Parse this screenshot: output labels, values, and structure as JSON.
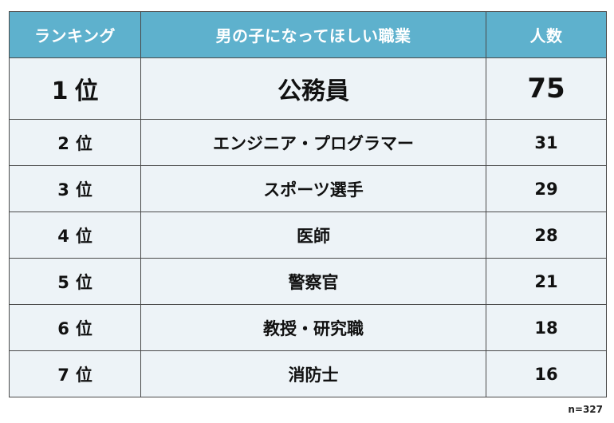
{
  "table": {
    "headers": {
      "rank": "ランキング",
      "job": "男の子になってほしい職業",
      "count": "人数"
    },
    "rows": [
      {
        "rank_num": "1",
        "rank_suffix": "位",
        "job": "公務員",
        "count": "75"
      },
      {
        "rank_num": "2",
        "rank_suffix": "位",
        "job": "エンジニア・プログラマー",
        "count": "31"
      },
      {
        "rank_num": "3",
        "rank_suffix": "位",
        "job": "スポーツ選手",
        "count": "29"
      },
      {
        "rank_num": "4",
        "rank_suffix": "位",
        "job": "医師",
        "count": "28"
      },
      {
        "rank_num": "5",
        "rank_suffix": "位",
        "job": "警察官",
        "count": "21"
      },
      {
        "rank_num": "6",
        "rank_suffix": "位",
        "job": "教授・研究職",
        "count": "18"
      },
      {
        "rank_num": "7",
        "rank_suffix": "位",
        "job": "消防士",
        "count": "16"
      }
    ]
  },
  "footnote": "n=327",
  "colors": {
    "header_bg": "#5eb1cd",
    "header_text": "#ffffff",
    "row_bg": "#edf3f7",
    "border": "#4a4a4a"
  }
}
